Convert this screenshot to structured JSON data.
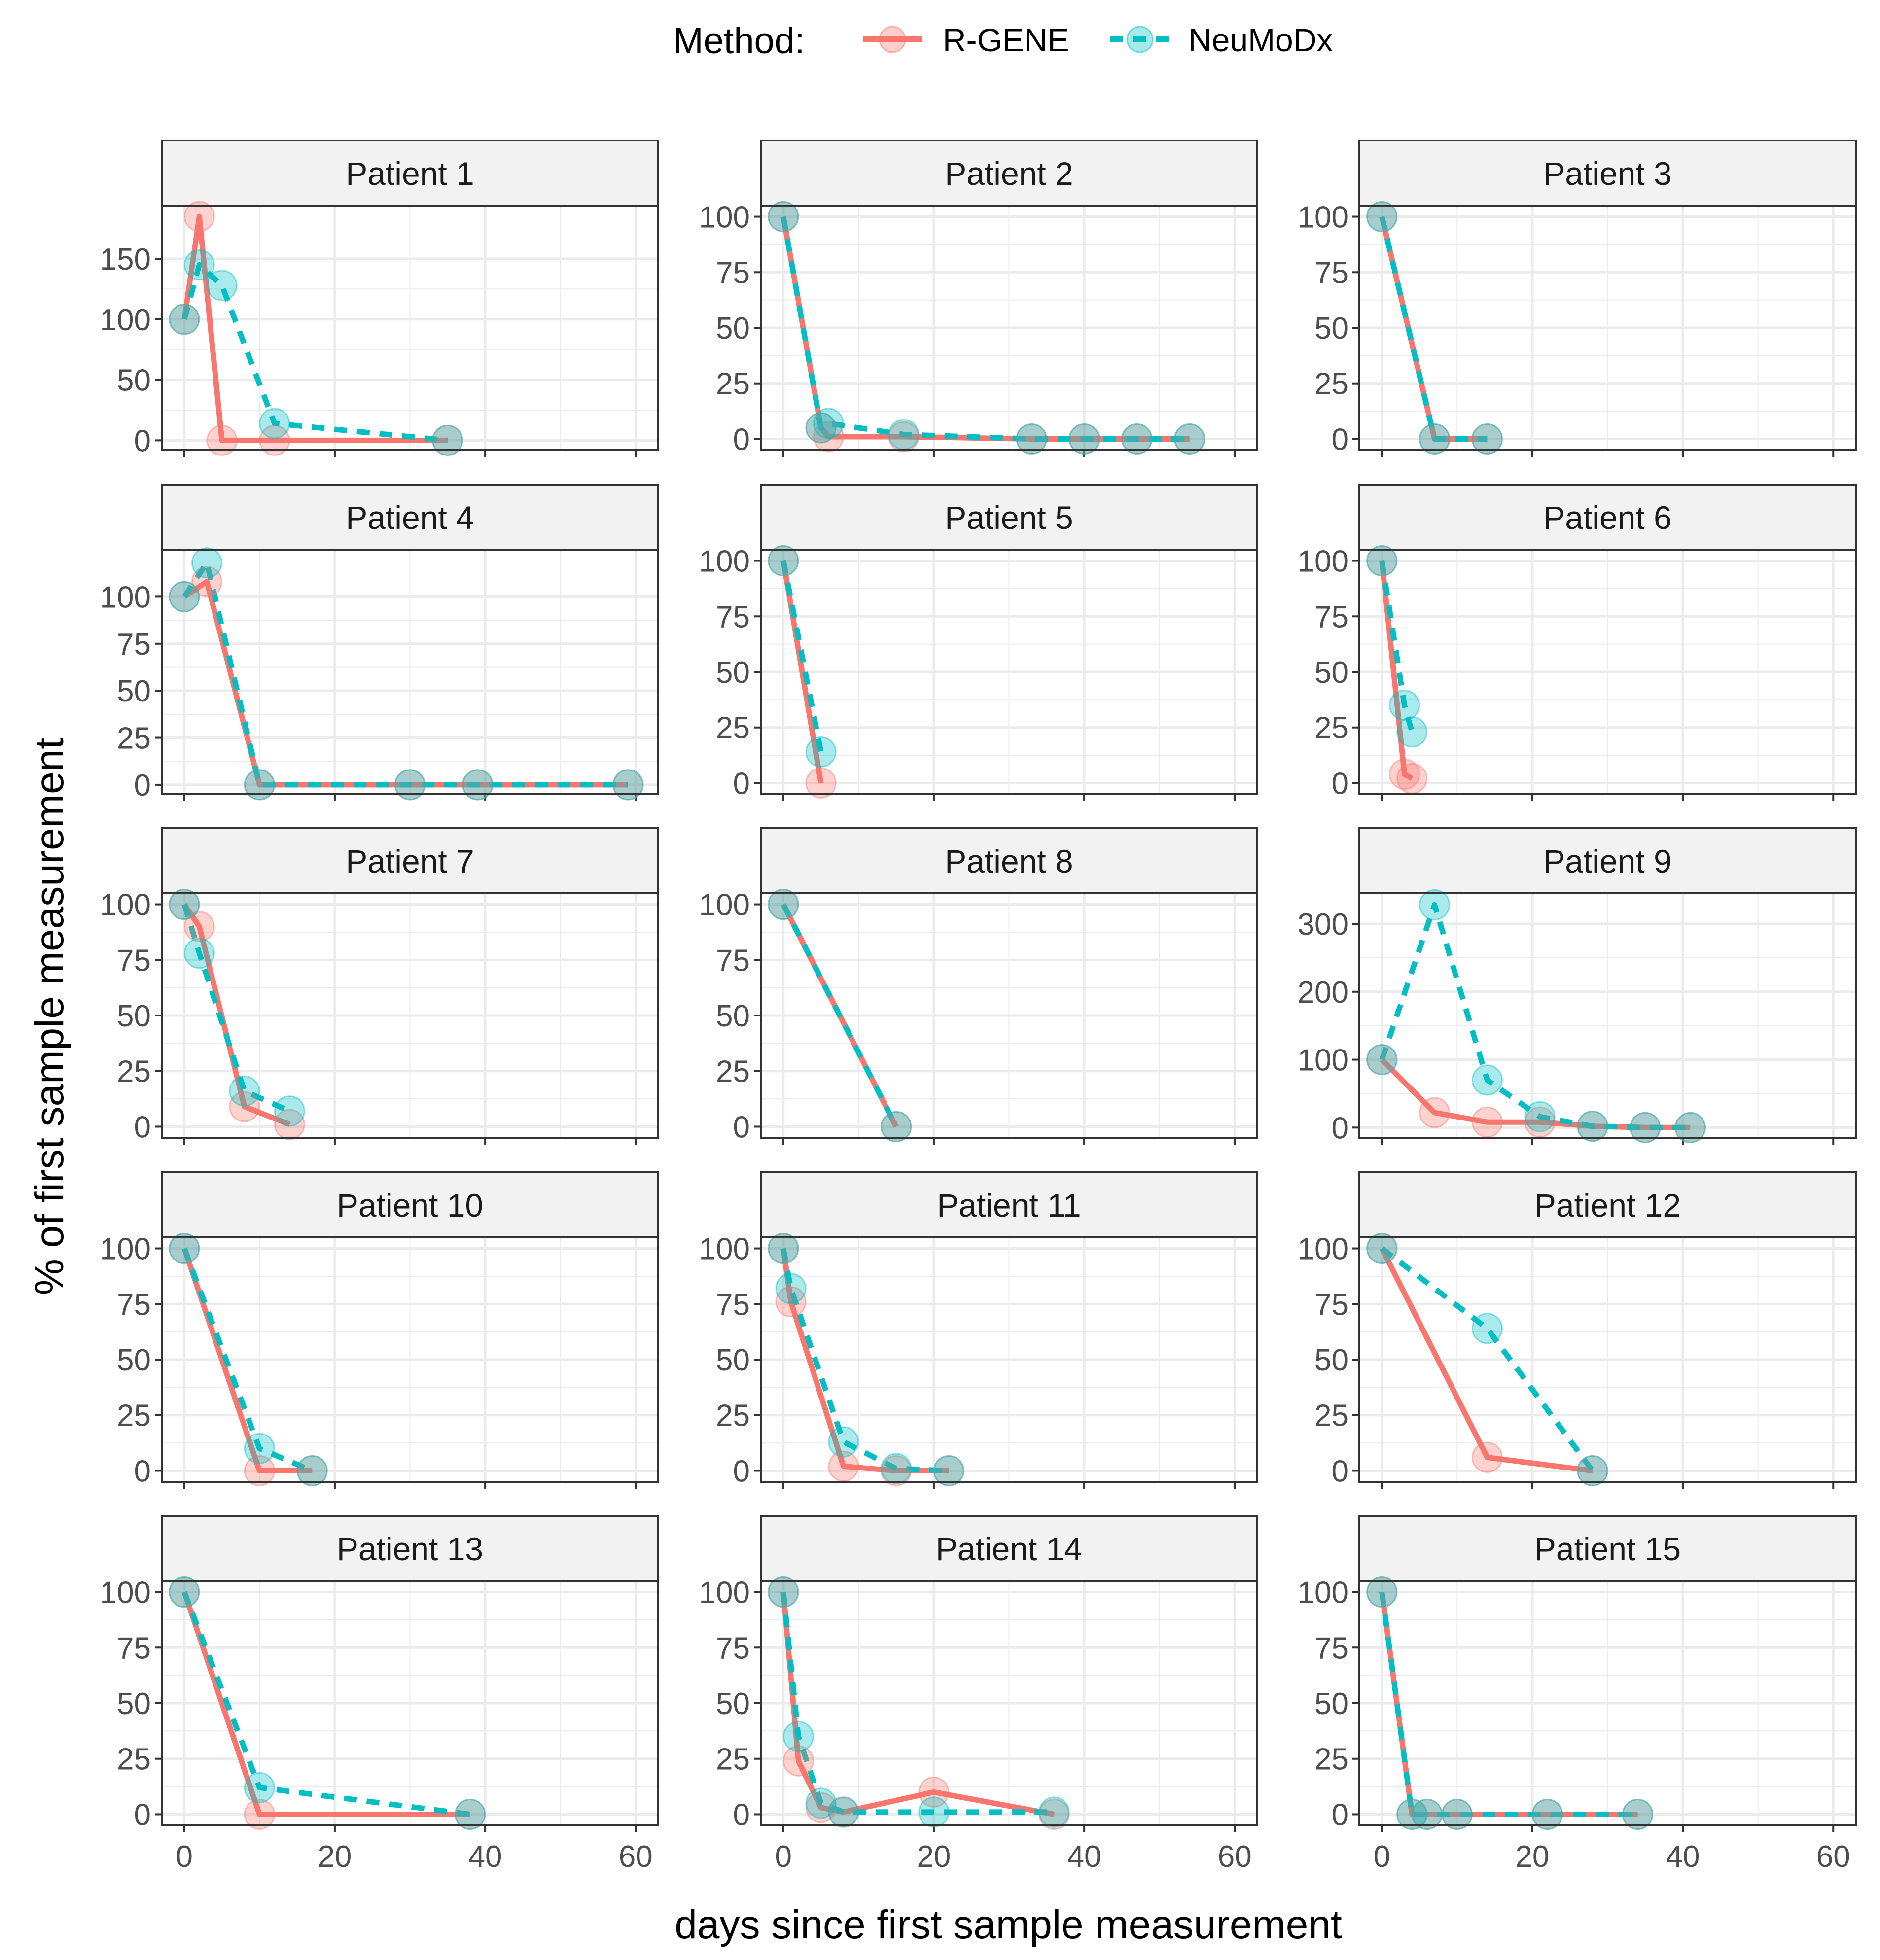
{
  "chart_data": {
    "type": "line",
    "legend": {
      "title": "Method:",
      "position": "top",
      "entries": [
        {
          "name": "R-GENE",
          "color": "#F8766D",
          "linestyle": "solid"
        },
        {
          "name": "NeuMoDx",
          "color": "#00BFC4",
          "linestyle": "dashed"
        }
      ]
    },
    "xlabel": "days since first sample measurement",
    "ylabel": "% of first sample measurement",
    "xlim": [
      -3,
      63
    ],
    "xticks": [
      0,
      20,
      40,
      60
    ],
    "xtick_labels": [
      "0",
      "20",
      "40",
      "60"
    ],
    "panels": [
      {
        "title": "Patient 1",
        "ylim": [
          -8,
          194
        ],
        "yticks": [
          0,
          50,
          100,
          150
        ],
        "ytick_labels": [
          "0",
          "50",
          "100",
          "150"
        ],
        "series": [
          {
            "name": "R-GENE",
            "x": [
              0,
              2,
              5,
              12,
              35
            ],
            "y": [
              100,
              185,
              0,
              0,
              0
            ]
          },
          {
            "name": "NeuMoDx",
            "x": [
              0,
              2,
              5,
              12,
              35
            ],
            "y": [
              100,
              145,
              128,
              14,
              0
            ]
          }
        ]
      },
      {
        "title": "Patient 2",
        "ylim": [
          -5,
          105
        ],
        "yticks": [
          0,
          25,
          50,
          75,
          100
        ],
        "ytick_labels": [
          "0",
          "25",
          "50",
          "75",
          "100"
        ],
        "series": [
          {
            "name": "R-GENE",
            "x": [
              0,
              5,
              6,
              16,
              33,
              40,
              47,
              54
            ],
            "y": [
              100,
              5,
              1,
              1,
              0,
              0,
              0,
              0
            ]
          },
          {
            "name": "NeuMoDx",
            "x": [
              0,
              5,
              6,
              16,
              33,
              40,
              47,
              54
            ],
            "y": [
              100,
              5,
              7,
              2,
              0,
              0,
              0,
              0
            ]
          }
        ]
      },
      {
        "title": "Patient 3",
        "ylim": [
          -5,
          105
        ],
        "yticks": [
          0,
          25,
          50,
          75,
          100
        ],
        "ytick_labels": [
          "0",
          "25",
          "50",
          "75",
          "100"
        ],
        "series": [
          {
            "name": "R-GENE",
            "x": [
              0,
              7,
              14
            ],
            "y": [
              100,
              0,
              0
            ]
          },
          {
            "name": "NeuMoDx",
            "x": [
              0,
              7,
              14
            ],
            "y": [
              100,
              0,
              0
            ]
          }
        ]
      },
      {
        "title": "Patient 4",
        "ylim": [
          -5,
          125
        ],
        "yticks": [
          0,
          25,
          50,
          75,
          100
        ],
        "ytick_labels": [
          "0",
          "25",
          "50",
          "75",
          "100"
        ],
        "series": [
          {
            "name": "R-GENE",
            "x": [
              0,
              3,
              10,
              30,
              39,
              59
            ],
            "y": [
              100,
              108,
              0,
              0,
              0,
              0
            ]
          },
          {
            "name": "NeuMoDx",
            "x": [
              0,
              3,
              10,
              30,
              39,
              59
            ],
            "y": [
              100,
              118,
              0,
              0,
              0,
              0
            ]
          }
        ]
      },
      {
        "title": "Patient 5",
        "ylim": [
          -5,
          105
        ],
        "yticks": [
          0,
          25,
          50,
          75,
          100
        ],
        "ytick_labels": [
          "0",
          "25",
          "50",
          "75",
          "100"
        ],
        "series": [
          {
            "name": "R-GENE",
            "x": [
              0,
              5
            ],
            "y": [
              100,
              0
            ]
          },
          {
            "name": "NeuMoDx",
            "x": [
              0,
              5
            ],
            "y": [
              100,
              14
            ]
          }
        ]
      },
      {
        "title": "Patient 6",
        "ylim": [
          -5,
          105
        ],
        "yticks": [
          0,
          25,
          50,
          75,
          100
        ],
        "ytick_labels": [
          "0",
          "25",
          "50",
          "75",
          "100"
        ],
        "series": [
          {
            "name": "R-GENE",
            "x": [
              0,
              3,
              4
            ],
            "y": [
              100,
              4,
              2
            ]
          },
          {
            "name": "NeuMoDx",
            "x": [
              0,
              3,
              4
            ],
            "y": [
              100,
              35,
              23
            ]
          }
        ]
      },
      {
        "title": "Patient 7",
        "ylim": [
          -5,
          105
        ],
        "yticks": [
          0,
          25,
          50,
          75,
          100
        ],
        "ytick_labels": [
          "0",
          "25",
          "50",
          "75",
          "100"
        ],
        "series": [
          {
            "name": "R-GENE",
            "x": [
              0,
              2,
              8,
              14
            ],
            "y": [
              100,
              90,
              9,
              1
            ]
          },
          {
            "name": "NeuMoDx",
            "x": [
              0,
              2,
              8,
              14
            ],
            "y": [
              100,
              78,
              16,
              7
            ]
          }
        ]
      },
      {
        "title": "Patient 8",
        "ylim": [
          -5,
          105
        ],
        "yticks": [
          0,
          25,
          50,
          75,
          100
        ],
        "ytick_labels": [
          "0",
          "25",
          "50",
          "75",
          "100"
        ],
        "series": [
          {
            "name": "R-GENE",
            "x": [
              0,
              15
            ],
            "y": [
              100,
              0
            ]
          },
          {
            "name": "NeuMoDx",
            "x": [
              0,
              15
            ],
            "y": [
              100,
              0
            ]
          }
        ]
      },
      {
        "title": "Patient 9",
        "ylim": [
          -15,
          345
        ],
        "yticks": [
          0,
          100,
          200,
          300
        ],
        "ytick_labels": [
          "0",
          "100",
          "200",
          "300"
        ],
        "series": [
          {
            "name": "R-GENE",
            "x": [
              0,
              7,
              14,
              21,
              28,
              35,
              41
            ],
            "y": [
              100,
              22,
              8,
              8,
              2,
              0,
              0
            ]
          },
          {
            "name": "NeuMoDx",
            "x": [
              0,
              7,
              14,
              21,
              28,
              35,
              41
            ],
            "y": [
              100,
              328,
              70,
              16,
              2,
              0,
              0
            ]
          }
        ]
      },
      {
        "title": "Patient 10",
        "ylim": [
          -5,
          105
        ],
        "yticks": [
          0,
          25,
          50,
          75,
          100
        ],
        "ytick_labels": [
          "0",
          "25",
          "50",
          "75",
          "100"
        ],
        "series": [
          {
            "name": "R-GENE",
            "x": [
              0,
              10,
              17
            ],
            "y": [
              100,
              0,
              0
            ]
          },
          {
            "name": "NeuMoDx",
            "x": [
              0,
              10,
              17
            ],
            "y": [
              100,
              10,
              0
            ]
          }
        ]
      },
      {
        "title": "Patient 11",
        "ylim": [
          -5,
          105
        ],
        "yticks": [
          0,
          25,
          50,
          75,
          100
        ],
        "ytick_labels": [
          "0",
          "25",
          "50",
          "75",
          "100"
        ],
        "series": [
          {
            "name": "R-GENE",
            "x": [
              0,
              1,
              8,
              15,
              22
            ],
            "y": [
              100,
              76,
              2,
              0,
              0
            ]
          },
          {
            "name": "NeuMoDx",
            "x": [
              0,
              1,
              8,
              15,
              22
            ],
            "y": [
              100,
              82,
              13,
              1,
              0
            ]
          }
        ]
      },
      {
        "title": "Patient 12",
        "ylim": [
          -5,
          105
        ],
        "yticks": [
          0,
          25,
          50,
          75,
          100
        ],
        "ytick_labels": [
          "0",
          "25",
          "50",
          "75",
          "100"
        ],
        "series": [
          {
            "name": "R-GENE",
            "x": [
              0,
              14,
              28
            ],
            "y": [
              100,
              6,
              0
            ]
          },
          {
            "name": "NeuMoDx",
            "x": [
              0,
              14,
              28
            ],
            "y": [
              100,
              64,
              0
            ]
          }
        ]
      },
      {
        "title": "Patient 13",
        "ylim": [
          -5,
          105
        ],
        "yticks": [
          0,
          25,
          50,
          75,
          100
        ],
        "ytick_labels": [
          "0",
          "25",
          "50",
          "75",
          "100"
        ],
        "series": [
          {
            "name": "R-GENE",
            "x": [
              0,
              10,
              38
            ],
            "y": [
              100,
              0,
              0
            ]
          },
          {
            "name": "NeuMoDx",
            "x": [
              0,
              10,
              38
            ],
            "y": [
              100,
              12,
              0
            ]
          }
        ]
      },
      {
        "title": "Patient 14",
        "ylim": [
          -5,
          105
        ],
        "yticks": [
          0,
          25,
          50,
          75,
          100
        ],
        "ytick_labels": [
          "0",
          "25",
          "50",
          "75",
          "100"
        ],
        "series": [
          {
            "name": "R-GENE",
            "x": [
              0,
              2,
              5,
              8,
              20,
              36
            ],
            "y": [
              100,
              24,
              3,
              1,
              10,
              0
            ]
          },
          {
            "name": "NeuMoDx",
            "x": [
              0,
              2,
              5,
              8,
              20,
              36
            ],
            "y": [
              100,
              35,
              5,
              1,
              1,
              1
            ]
          }
        ]
      },
      {
        "title": "Patient 15",
        "ylim": [
          -5,
          105
        ],
        "yticks": [
          0,
          25,
          50,
          75,
          100
        ],
        "ytick_labels": [
          "0",
          "25",
          "50",
          "75",
          "100"
        ],
        "series": [
          {
            "name": "R-GENE",
            "x": [
              0,
              4,
              6,
              10,
              22,
              34
            ],
            "y": [
              100,
              0,
              0,
              0,
              0,
              0
            ]
          },
          {
            "name": "NeuMoDx",
            "x": [
              0,
              4,
              6,
              10,
              22,
              34
            ],
            "y": [
              100,
              0,
              0,
              0,
              0,
              0
            ]
          }
        ]
      }
    ]
  }
}
